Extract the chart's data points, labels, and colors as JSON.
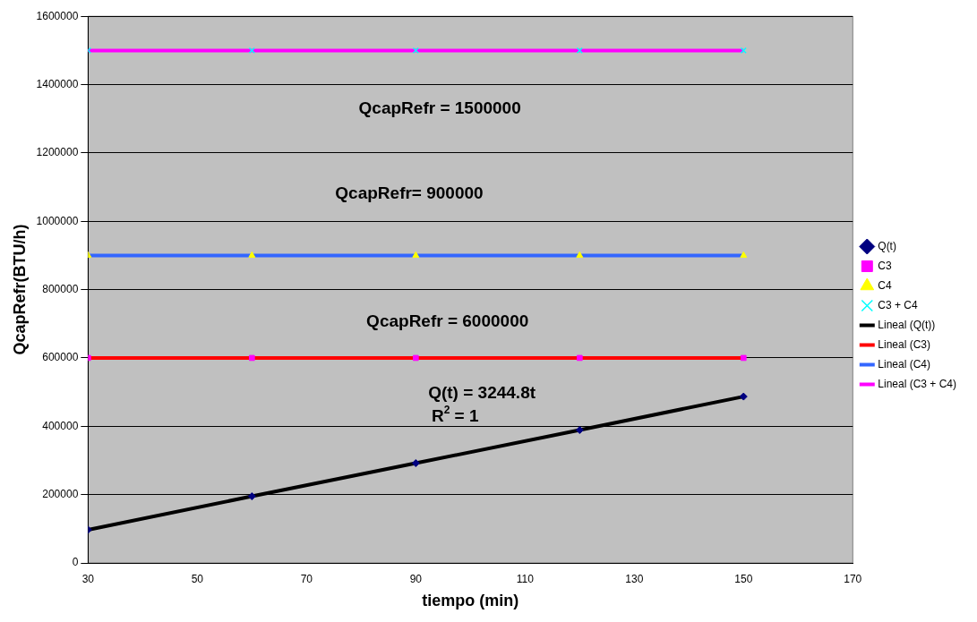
{
  "chart_data": {
    "type": "scatter",
    "xlabel": "tiempo (min)",
    "ylabel": "QcapRefr(BTU/h)",
    "x": [
      30,
      60,
      90,
      120,
      150
    ],
    "series": [
      {
        "name": "Q(t)",
        "type": "scatter",
        "marker": "diamond",
        "color": "#000080",
        "values": [
          97000,
          195000,
          292000,
          389000,
          487000
        ]
      },
      {
        "name": "C3",
        "type": "scatter",
        "marker": "square",
        "color": "#ff00ff",
        "values": [
          600000,
          600000,
          600000,
          600000,
          600000
        ]
      },
      {
        "name": "C4",
        "type": "scatter",
        "marker": "triangle",
        "color": "#ffff00",
        "values": [
          900000,
          900000,
          900000,
          900000,
          900000
        ]
      },
      {
        "name": "C3 + C4",
        "type": "scatter",
        "marker": "cross",
        "color": "#00ffff",
        "values": [
          1500000,
          1500000,
          1500000,
          1500000,
          1500000
        ]
      },
      {
        "name": "Lineal (Q(t))",
        "type": "line",
        "marker": "none",
        "color": "#000000",
        "values": [
          97000,
          195000,
          292000,
          389000,
          487000
        ]
      },
      {
        "name": "Lineal (C3)",
        "type": "line",
        "marker": "none",
        "color": "#ff0000",
        "values": [
          600000,
          600000,
          600000,
          600000,
          600000
        ]
      },
      {
        "name": "Lineal (C4)",
        "type": "line",
        "marker": "none",
        "color": "#3366ff",
        "values": [
          900000,
          900000,
          900000,
          900000,
          900000
        ]
      },
      {
        "name": "Lineal (C3 + C4)",
        "type": "line",
        "marker": "none",
        "color": "#ff00ff",
        "values": [
          1500000,
          1500000,
          1500000,
          1500000,
          1500000
        ]
      }
    ],
    "xlim": [
      30,
      170
    ],
    "xticks": [
      30,
      50,
      70,
      90,
      110,
      130,
      150,
      170
    ],
    "ylim": [
      0,
      1600000
    ],
    "yticks": [
      0,
      200000,
      400000,
      600000,
      800000,
      1000000,
      1200000,
      1400000,
      1600000
    ],
    "grid": "y",
    "legend": "right",
    "annotations": [
      "QcapRefr = 1500000",
      "QcapRefr= 900000",
      "QcapRefr = 6000000",
      "Q(t) = 3244.8t",
      "R$^{2}$ = 1"
    ]
  }
}
